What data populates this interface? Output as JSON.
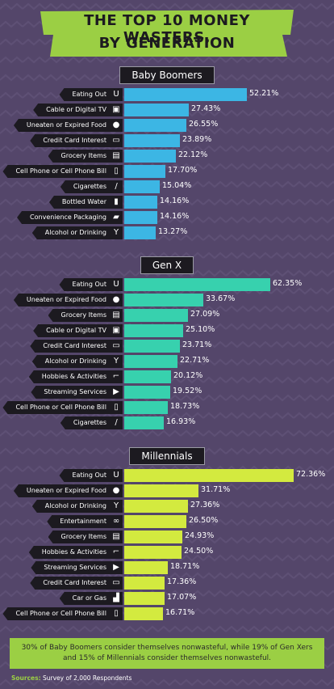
{
  "title": {
    "line1": "THE TOP 10 MONEY WASTERS,",
    "line2": "BY GENERATION"
  },
  "colors": {
    "boomers": "#3cb6e4",
    "genx": "#37d1ae",
    "millennials": "#d3ea3f",
    "banner": "#9bcf44",
    "background": "#54466a"
  },
  "chart_data": [
    {
      "type": "bar",
      "title": "Baby Boomers",
      "categories": [
        "Eating Out",
        "Cable or Digital TV",
        "Uneaten or Expired Food",
        "Credit Card Interest",
        "Grocery Items",
        "Cell Phone or Cell Phone Bill",
        "Cigarettes",
        "Bottled Water",
        "Convenience Packaging",
        "Alcohol or Drinking"
      ],
      "icons": [
        "cup-icon",
        "tv-icon",
        "food-icon",
        "credit-card-icon",
        "grocery-bag-icon",
        "phone-icon",
        "cigarette-icon",
        "water-bottle-icon",
        "packaging-icon",
        "cocktail-icon"
      ],
      "values": [
        52.21,
        27.43,
        26.55,
        23.89,
        22.12,
        17.7,
        15.04,
        14.16,
        14.16,
        13.27
      ],
      "labels": [
        "52.21%",
        "27.43%",
        "26.55%",
        "23.89%",
        "22.12%",
        "17.70%",
        "15.04%",
        "14.16%",
        "14.16%",
        "13.27%"
      ]
    },
    {
      "type": "bar",
      "title": "Gen X",
      "categories": [
        "Eating Out",
        "Uneaten or Expired Food",
        "Grocery Items",
        "Cable or Digital TV",
        "Credit Card Interest",
        "Alcohol or Drinking",
        "Hobbies & Activities",
        "Streaming Services",
        "Cell Phone or Cell Phone Bill",
        "Cigarettes"
      ],
      "icons": [
        "cup-icon",
        "food-icon",
        "grocery-bag-icon",
        "tv-icon",
        "credit-card-icon",
        "cocktail-icon",
        "hockey-stick-icon",
        "play-icon",
        "phone-icon",
        "cigarette-icon"
      ],
      "values": [
        62.35,
        33.67,
        27.09,
        25.1,
        23.71,
        22.71,
        20.12,
        19.52,
        18.73,
        16.93
      ],
      "labels": [
        "62.35%",
        "33.67%",
        "27.09%",
        "25.10%",
        "23.71%",
        "22.71%",
        "20.12%",
        "19.52%",
        "18.73%",
        "16.93%"
      ]
    },
    {
      "type": "bar",
      "title": "Millennials",
      "categories": [
        "Eating Out",
        "Uneaten or Expired Food",
        "Alcohol or Drinking",
        "Entertainment",
        "Grocery Items",
        "Hobbies & Activities",
        "Streaming Services",
        "Credit Card Interest",
        "Car or Gas",
        "Cell Phone or Cell Phone Bill"
      ],
      "icons": [
        "cup-icon",
        "food-icon",
        "cocktail-icon",
        "3d-glasses-icon",
        "grocery-bag-icon",
        "hockey-stick-icon",
        "play-icon",
        "credit-card-icon",
        "gas-pump-icon",
        "phone-icon"
      ],
      "values": [
        72.36,
        31.71,
        27.36,
        26.5,
        24.93,
        24.5,
        18.71,
        17.36,
        17.07,
        16.71
      ],
      "labels": [
        "72.36%",
        "31.71%",
        "27.36%",
        "26.50%",
        "24.93%",
        "24.50%",
        "18.71%",
        "17.36%",
        "17.07%",
        "16.71%"
      ]
    }
  ],
  "footer": {
    "note": "30% of Baby Boomers consider themselves nonwasteful, while 19% of Gen Xers and 15% of Millennials consider themselves nonwasteful."
  },
  "sources": {
    "label": "Sources:",
    "text": "Survey of 2,000 Respondents"
  }
}
